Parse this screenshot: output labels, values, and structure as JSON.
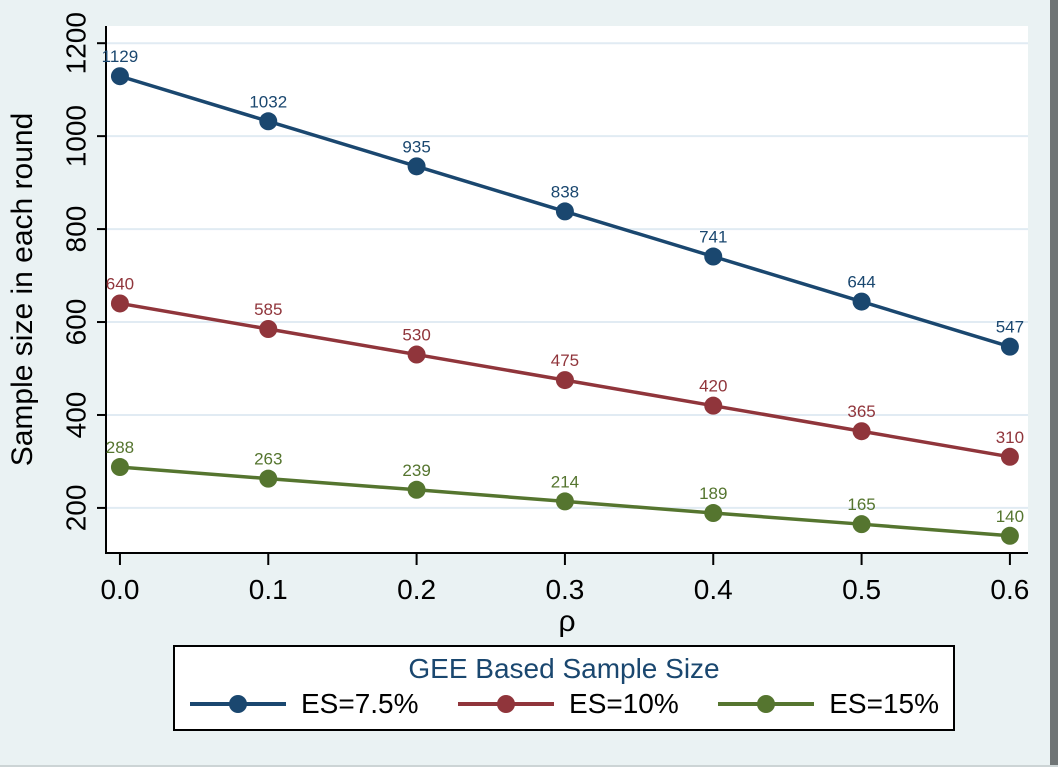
{
  "window": {
    "background": "#eaf2f3",
    "right_edge_color": "#6f7475",
    "bottom_edge_color": "#ccd4d5"
  },
  "styles": {
    "plot_bg": "#ffffff",
    "grid_color": "#e1ebf3",
    "axis_color": "#000000",
    "tick_label_color": "#000000"
  },
  "chart_data": {
    "type": "line",
    "title": "",
    "xlabel": "ρ",
    "ylabel": "Sample size in each round",
    "x": [
      0.0,
      0.1,
      0.2,
      0.3,
      0.4,
      0.5,
      0.6
    ],
    "x_tick_labels": [
      "0.0",
      "0.1",
      "0.2",
      "0.3",
      "0.4",
      "0.5",
      "0.6"
    ],
    "y_ticks": [
      200,
      400,
      600,
      800,
      1000,
      1200
    ],
    "y_tick_labels": [
      "200",
      "400",
      "600",
      "800",
      "1000",
      "1200"
    ],
    "xlim": [
      -0.0094,
      0.6122
    ],
    "ylim": [
      103,
      1237
    ],
    "grid": "horizontal-only",
    "data_labels": true,
    "series": [
      {
        "name": "ES=7.5%",
        "color": "#1a476f",
        "values": [
          1129,
          1032,
          935,
          838,
          741,
          644,
          547
        ]
      },
      {
        "name": "ES=10%",
        "color": "#90353b",
        "values": [
          640,
          585,
          530,
          475,
          420,
          365,
          310
        ]
      },
      {
        "name": "ES=15%",
        "color": "#55752f",
        "values": [
          288,
          263,
          239,
          214,
          189,
          165,
          140
        ]
      }
    ],
    "legend": {
      "title": "GEE Based Sample Size",
      "title_color": "#1a476f",
      "position": "bottom",
      "border": true
    }
  }
}
